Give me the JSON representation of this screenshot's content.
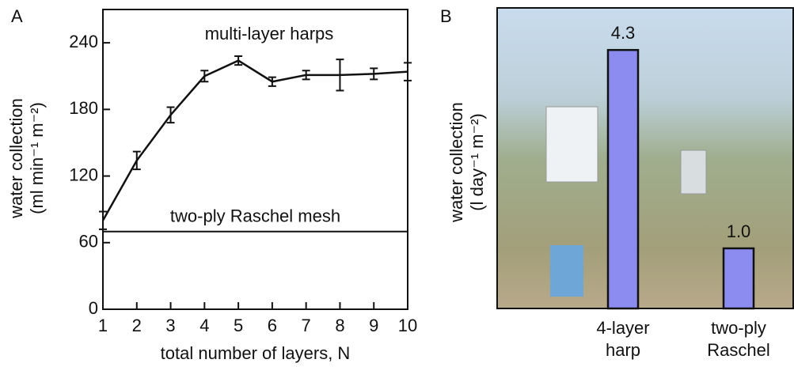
{
  "chart_data": [
    {
      "type": "line",
      "panel": "A",
      "x_label": "total number of layers, N",
      "y_label": [
        "water collection",
        "(ml min⁻¹ m⁻²)"
      ],
      "x": [
        1,
        2,
        3,
        4,
        5,
        6,
        7,
        8,
        9,
        10
      ],
      "series": [
        {
          "color": "#111111",
          "values": [
            80,
            134,
            175,
            210,
            224,
            205,
            211,
            211,
            212,
            214
          ],
          "errors": [
            8,
            8,
            7,
            5,
            4,
            4,
            4,
            14,
            5,
            8
          ]
        }
      ],
      "reference_line": {
        "value": 70,
        "label": "two-ply Raschel mesh"
      },
      "annotation": "multi-layer harps",
      "xlim": [
        1,
        10
      ],
      "xticks": [
        1,
        2,
        3,
        4,
        5,
        6,
        7,
        8,
        9,
        10
      ],
      "ylim": [
        0,
        270
      ],
      "yticks": [
        0,
        60,
        120,
        180,
        240
      ]
    },
    {
      "type": "bar",
      "panel": "B",
      "y_label": [
        "water collection",
        "(l day⁻¹ m⁻²)"
      ],
      "categories": [
        "4-layer harp",
        "two-ply Raschel"
      ],
      "values": [
        4.3,
        1.0
      ],
      "value_labels": [
        "4.3",
        "1.0"
      ],
      "color": "#8c8cf0",
      "ylim": [
        0,
        5
      ]
    }
  ]
}
